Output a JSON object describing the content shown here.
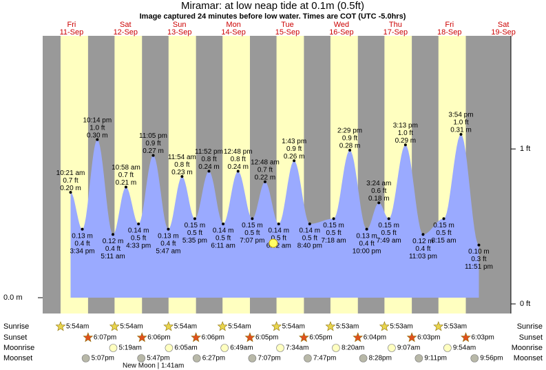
{
  "chart_data": {
    "type": "tide",
    "title": "Miramar: at low  neap tide at 0.1m (0.5ft)",
    "subtitle": "Image captured 24 minutes before low water. Times are COT (UTC -5.0hrs)",
    "ylim": [
      -0.03,
      0.497
    ],
    "yticks": [
      {
        "value": 0,
        "label": "0.0 m"
      }
    ],
    "y2lim": [
      -0.062,
      1.73
    ],
    "y2ticks": [
      {
        "value": 1,
        "label": "1 ft"
      },
      {
        "value": 0,
        "label": "0 ft"
      }
    ],
    "row_labels": [
      "Sunrise",
      "Sunset",
      "Moonrise",
      "Moonset"
    ],
    "days": [
      {
        "weekday": "Fri",
        "date": "11-Sep",
        "sunrise": "5:54am",
        "sunset": "6:07pm",
        "moonset": "5:07pm",
        "tides": [
          {
            "time": "10:21 am",
            "feet": "0.7 ft",
            "value": 0.2,
            "value_label": "0.20 m"
          },
          {
            "time": "3:34 pm",
            "feet": "0.4 ft",
            "value": 0.13,
            "value_label": "0.13 m"
          },
          {
            "time": "10:14 pm",
            "feet": "1.0 ft",
            "value": 0.3,
            "value_label": "0.30 m"
          }
        ]
      },
      {
        "weekday": "Sat",
        "date": "12-Sep",
        "sunrise": "5:54am",
        "sunset": "6:06pm",
        "moonrise": "5:19am",
        "moonset": "5:47pm",
        "moon_phase": "New Moon | 1:41am",
        "tides": [
          {
            "time": "5:11 am",
            "feet": "0.4 ft",
            "value": 0.12,
            "value_label": "0.12 m"
          },
          {
            "time": "10:58 am",
            "feet": "0.7 ft",
            "value": 0.21,
            "value_label": "0.21 m"
          },
          {
            "time": "4:33 pm",
            "feet": "0.5 ft",
            "value": 0.14,
            "value_label": "0.14 m"
          },
          {
            "time": "11:05 pm",
            "feet": "0.9 ft",
            "value": 0.27,
            "value_label": "0.27 m"
          }
        ]
      },
      {
        "weekday": "Sun",
        "date": "13-Sep",
        "sunrise": "5:54am",
        "sunset": "6:06pm",
        "moonrise": "6:05am",
        "moonset": "6:27pm",
        "tides": [
          {
            "time": "5:47 am",
            "feet": "0.4 ft",
            "value": 0.13,
            "value_label": "0.13 m"
          },
          {
            "time": "11:54 am",
            "feet": "0.8 ft",
            "value": 0.23,
            "value_label": "0.23 m"
          },
          {
            "time": "5:35 pm",
            "feet": "0.5 ft",
            "value": 0.15,
            "value_label": "0.15 m"
          },
          {
            "time": "11:52 pm",
            "feet": "0.8 ft",
            "value": 0.24,
            "value_label": "0.24 m"
          }
        ]
      },
      {
        "weekday": "Mon",
        "date": "14-Sep",
        "sunrise": "5:54am",
        "sunset": "6:05pm",
        "moonrise": "6:49am",
        "moonset": "7:07pm",
        "tides": [
          {
            "time": "6:11 am",
            "feet": "0.5 ft",
            "value": 0.14,
            "value_label": "0.14 m"
          },
          {
            "time": "12:48 pm",
            "feet": "0.8 ft",
            "value": 0.24,
            "value_label": "0.24 m"
          },
          {
            "time": "7:07 pm",
            "feet": "0.5 ft",
            "value": 0.15,
            "value_label": "0.15 m"
          }
        ]
      },
      {
        "weekday": "Tue",
        "date": "15-Sep",
        "sunrise": "5:54am",
        "sunset": "6:05pm",
        "moonrise": "7:34am",
        "moonset": "7:47pm",
        "tides": [
          {
            "time": "12:48 am",
            "feet": "0.7 ft",
            "value": 0.22,
            "value_label": "0.22 m"
          },
          {
            "time": "6:52 am",
            "feet": "0.5 ft",
            "value": 0.14,
            "value_label": "0.14 m"
          },
          {
            "time": "1:43 pm",
            "feet": "0.9 ft",
            "value": 0.26,
            "value_label": "0.26 m"
          },
          {
            "time": "8:40 pm",
            "feet": "0.5 ft",
            "value": 0.14,
            "value_label": "0.14 m"
          }
        ]
      },
      {
        "weekday": "Wed",
        "date": "16-Sep",
        "sunrise": "5:53am",
        "sunset": "6:04pm",
        "moonrise": "8:20am",
        "moonset": "8:28pm",
        "tides": [
          {
            "time": "7:18 am",
            "feet": "0.5 ft",
            "value": 0.15,
            "value_label": "0.15 m"
          },
          {
            "time": "2:29 pm",
            "feet": "0.9 ft",
            "value": 0.28,
            "value_label": "0.28 m"
          },
          {
            "time": "10:00 pm",
            "feet": "0.4 ft",
            "value": 0.13,
            "value_label": "0.13 m"
          }
        ]
      },
      {
        "weekday": "Thu",
        "date": "17-Sep",
        "sunrise": "5:53am",
        "sunset": "6:03pm",
        "moonrise": "9:07am",
        "moonset": "9:11pm",
        "tides": [
          {
            "time": "3:24 am",
            "feet": "0.6 ft",
            "value": 0.18,
            "value_label": "0.18 m"
          },
          {
            "time": "7:49 am",
            "feet": "0.5 ft",
            "value": 0.15,
            "value_label": "0.15 m"
          },
          {
            "time": "3:13 pm",
            "feet": "1.0 ft",
            "value": 0.29,
            "value_label": "0.29 m"
          },
          {
            "time": "11:03 pm",
            "feet": "0.4 ft",
            "value": 0.12,
            "value_label": "0.12 m"
          }
        ]
      },
      {
        "weekday": "Fri",
        "date": "18-Sep",
        "sunrise": "5:53am",
        "sunset": "6:03pm",
        "moonrise": "9:54am",
        "moonset": "9:56pm",
        "tides": [
          {
            "time": "8:15 am",
            "feet": "0.5 ft",
            "value": 0.15,
            "value_label": "0.15 m"
          },
          {
            "time": "3:54 pm",
            "feet": "1.0 ft",
            "value": 0.31,
            "value_label": "0.31 m"
          },
          {
            "time": "11:51 pm",
            "feet": "0.3 ft",
            "value": 0.1,
            "value_label": "0.10 m"
          }
        ]
      },
      {
        "weekday": "Sat",
        "date": "19-Sep"
      }
    ]
  }
}
